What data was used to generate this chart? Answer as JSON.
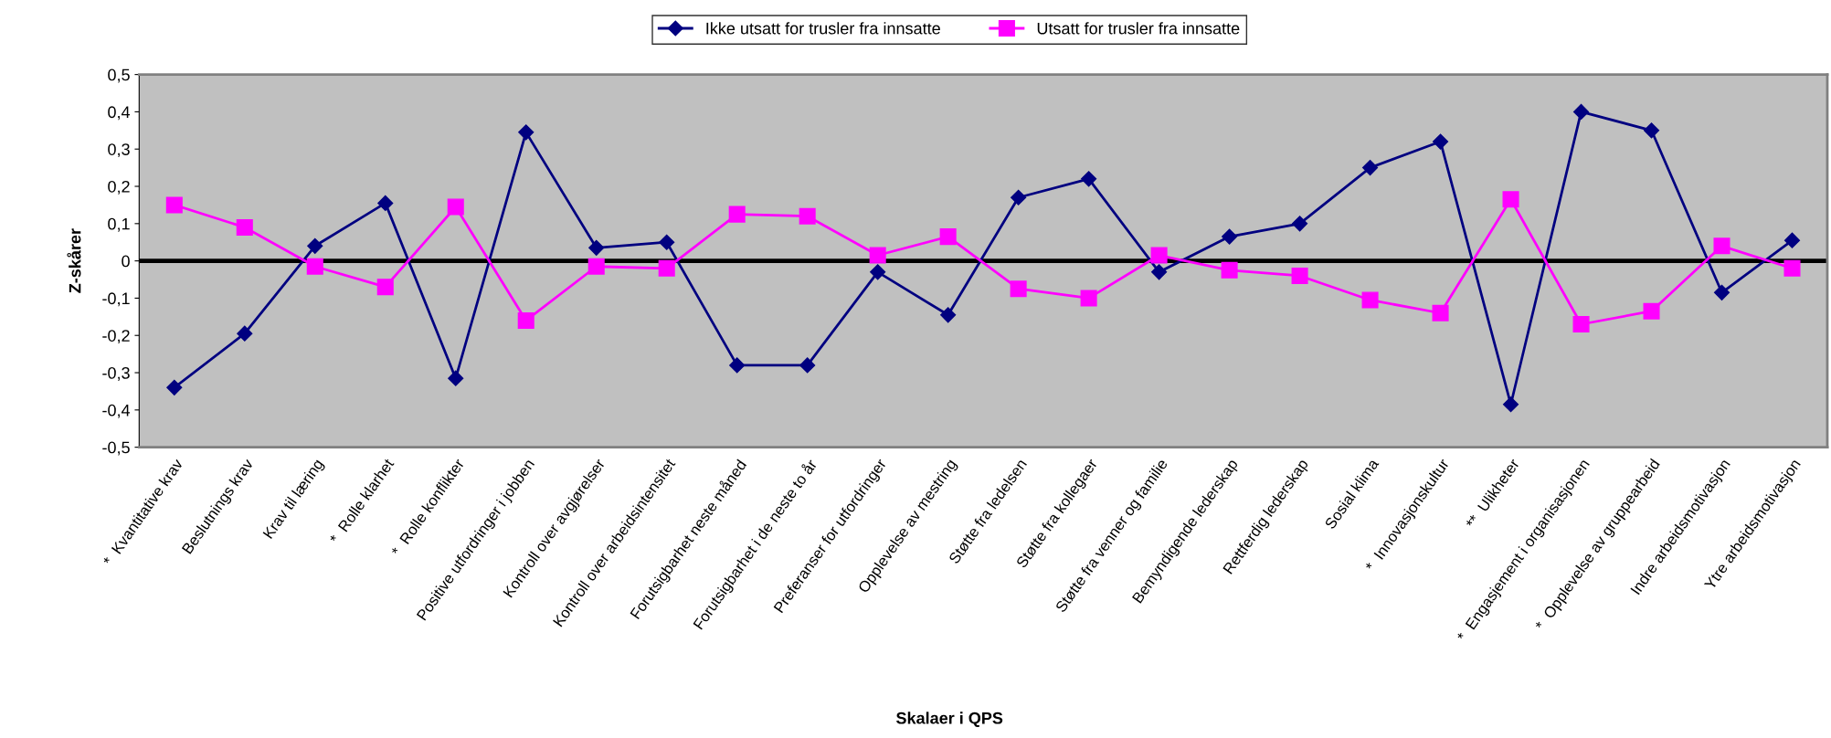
{
  "chart_data": {
    "type": "line",
    "xlabel": "Skalaer i QPS",
    "ylabel": "Z-skårer",
    "categories": [
      "*  Kvantitative krav",
      "Beslutnings krav",
      "Krav til læring",
      "*  Rolle klarhet",
      "*  Rolle konflikter",
      "Positive utfordringer i jobben",
      "Kontroll over avgjørelser",
      "Kontroll over arbeidsintensitet",
      "Forutsigbarhet neste måned",
      "Forutsigbarhet i de neste to år",
      "Preferanser for utfordringer",
      "Opplevelse av mestring",
      "Støtte fra ledelsen",
      "Støtte fra kollegaer",
      "Støtte fra venner og familie",
      "Bemyndigende lederskap",
      "Rettferdig lederskap",
      "Sosial klima",
      "*  Innovasjonskultur",
      "**  Ulikheter",
      "*  Engasjement i organisasjonen",
      "*  Opplevelse av gruppearbeid",
      "Indre arbeidsmotivasjon",
      "Ytre arbeidsmotivasjon"
    ],
    "series": [
      {
        "name": "Ikke utsatt for trusler fra innsatte",
        "color": "#000080",
        "marker": "diamond",
        "values": [
          -0.34,
          -0.195,
          0.04,
          0.155,
          -0.315,
          0.345,
          0.035,
          0.05,
          -0.28,
          -0.28,
          -0.03,
          -0.145,
          0.17,
          0.22,
          -0.03,
          0.065,
          0.1,
          0.25,
          0.32,
          -0.385,
          0.4,
          0.35,
          -0.085,
          0.055
        ]
      },
      {
        "name": "Utsatt for trusler fra innsatte",
        "color": "#ff00ff",
        "marker": "square",
        "values": [
          0.15,
          0.09,
          -0.015,
          -0.07,
          0.145,
          -0.16,
          -0.015,
          -0.02,
          0.125,
          0.12,
          0.015,
          0.065,
          -0.075,
          -0.1,
          0.015,
          -0.025,
          -0.04,
          -0.105,
          -0.14,
          0.165,
          -0.17,
          -0.135,
          0.04,
          -0.02
        ]
      }
    ],
    "ylim": [
      -0.5,
      0.5
    ],
    "yticks": [
      {
        "value": -0.5,
        "label": "-0,5"
      },
      {
        "value": -0.4,
        "label": "-0,4"
      },
      {
        "value": -0.3,
        "label": "-0,3"
      },
      {
        "value": -0.2,
        "label": "-0,2"
      },
      {
        "value": -0.1,
        "label": "-0,1"
      },
      0,
      {
        "value": 0.1,
        "label": "0,1"
      },
      {
        "value": 0.2,
        "label": "0,2"
      },
      {
        "value": 0.3,
        "label": "0,3"
      },
      {
        "value": 0.4,
        "label": "0,4"
      },
      {
        "value": 0.5,
        "label": "0,5"
      }
    ],
    "ref_lines": [
      {
        "axis": "y",
        "value": 0,
        "color": "#000000"
      }
    ],
    "grid": false,
    "legend": "top"
  }
}
